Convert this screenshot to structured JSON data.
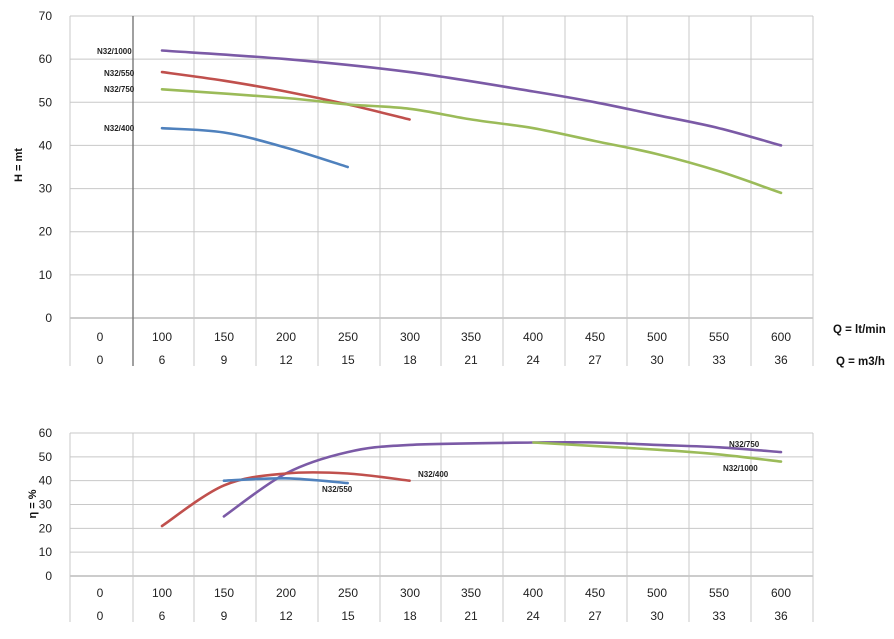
{
  "chart_data": [
    {
      "type": "line",
      "ylabel": "H = mt",
      "ylim": [
        0,
        70
      ],
      "yticks": [
        0,
        10,
        20,
        30,
        40,
        50,
        60,
        70
      ],
      "x_lt_min": [
        "0",
        "100",
        "150",
        "200",
        "250",
        "300",
        "350",
        "400",
        "450",
        "500",
        "550",
        "600"
      ],
      "x_m3h": [
        "0",
        "6",
        "9",
        "12",
        "15",
        "18",
        "21",
        "24",
        "27",
        "30",
        "33",
        "36"
      ],
      "x_unit_1": "Q = lt/min",
      "x_unit_2": "Q = m3/h",
      "xlim": [
        0,
        600
      ],
      "grid": true,
      "series": [
        {
          "name": "N32/1000",
          "color": "#7b5aa6",
          "points": [
            [
              100,
              62
            ],
            [
              200,
              60
            ],
            [
              300,
              57
            ],
            [
              400,
              52.5
            ],
            [
              450,
              50
            ],
            [
              500,
              47
            ],
            [
              550,
              44
            ],
            [
              600,
              40
            ]
          ]
        },
        {
          "name": "N32/550",
          "color": "#c0504d",
          "points": [
            [
              100,
              57
            ],
            [
              150,
              55
            ],
            [
              200,
              52.5
            ],
            [
              250,
              49.5
            ],
            [
              300,
              46
            ]
          ]
        },
        {
          "name": "N32/750",
          "color": "#9bbb59",
          "points": [
            [
              100,
              53
            ],
            [
              200,
              51
            ],
            [
              250,
              49.5
            ],
            [
              300,
              48.5
            ],
            [
              350,
              46
            ],
            [
              400,
              44
            ],
            [
              450,
              41
            ],
            [
              500,
              38
            ],
            [
              550,
              34
            ],
            [
              600,
              29
            ]
          ]
        },
        {
          "name": "N32/400",
          "color": "#4f81bd",
          "points": [
            [
              100,
              44
            ],
            [
              150,
              43
            ],
            [
              200,
              39.5
            ],
            [
              250,
              35
            ]
          ]
        }
      ]
    },
    {
      "type": "line",
      "ylabel": "η = %",
      "ylim": [
        0,
        60
      ],
      "yticks": [
        0,
        10,
        20,
        30,
        40,
        50,
        60
      ],
      "x_lt_min": [
        "0",
        "100",
        "150",
        "200",
        "250",
        "300",
        "350",
        "400",
        "450",
        "500",
        "550",
        "600"
      ],
      "x_m3h": [
        "0",
        "6",
        "9",
        "12",
        "15",
        "18",
        "21",
        "24",
        "27",
        "30",
        "33",
        "36"
      ],
      "xlim": [
        0,
        600
      ],
      "grid": true,
      "series": [
        {
          "name": "N32/750",
          "color": "#7b5aa6",
          "points": [
            [
              150,
              25
            ],
            [
              200,
              43
            ],
            [
              250,
              52
            ],
            [
              300,
              55
            ],
            [
              400,
              56
            ],
            [
              450,
              56
            ],
            [
              500,
              55
            ],
            [
              550,
              54
            ],
            [
              600,
              52
            ]
          ]
        },
        {
          "name": "N32/1000",
          "color": "#9bbb59",
          "points": [
            [
              400,
              56
            ],
            [
              500,
              53
            ],
            [
              550,
              51
            ],
            [
              600,
              48
            ]
          ]
        },
        {
          "name": "N32/400",
          "color": "#c0504d",
          "points": [
            [
              100,
              21
            ],
            [
              150,
              38
            ],
            [
              200,
              43
            ],
            [
              250,
              43
            ],
            [
              300,
              40
            ]
          ]
        },
        {
          "name": "N32/550",
          "color": "#4f81bd",
          "points": [
            [
              150,
              40
            ],
            [
              200,
              41
            ],
            [
              250,
              39
            ]
          ]
        }
      ]
    }
  ]
}
